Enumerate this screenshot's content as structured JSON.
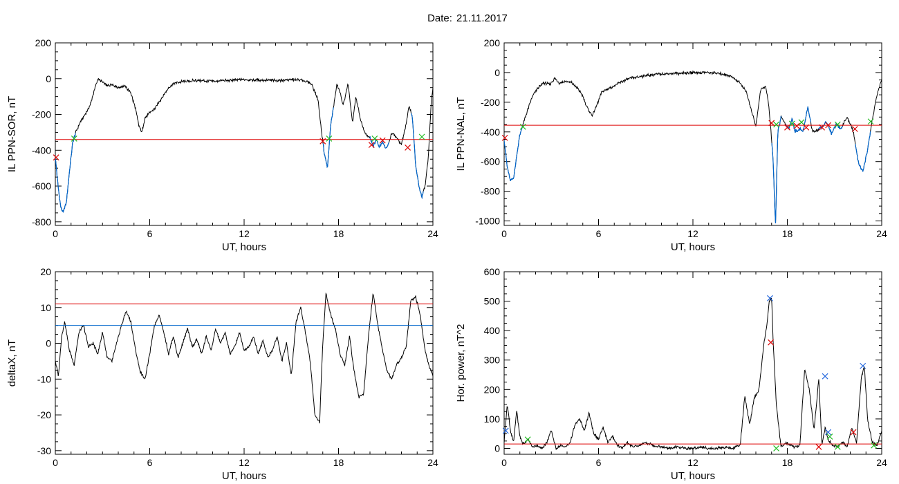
{
  "header": {
    "date_label": "Date:",
    "date_value": "21.11.2017"
  },
  "colors": {
    "signal": "#000000",
    "threshold": "#dd0000",
    "secondary_threshold": "#0066cc",
    "below_segment": "#0066cc",
    "marker_red": "#dd0000",
    "marker_green": "#22bb22",
    "marker_blue": "#2266dd"
  },
  "chart_data": [
    {
      "type": "line",
      "ylabel": "IL PPN-SOR, nT",
      "xlabel": "UT, hours",
      "xlim": [
        0,
        24
      ],
      "xticks": [
        "0",
        "6",
        "12",
        "18",
        "24"
      ],
      "ylim": [
        -820,
        200
      ],
      "yticks": [
        "200",
        "0",
        "-200",
        "-400",
        "-600",
        "-800"
      ],
      "grid": false,
      "series": [
        {
          "x": [
            0,
            0.2,
            0.35,
            0.5,
            0.7,
            0.9,
            1.1,
            1.3,
            1.6,
            1.9,
            2.2,
            2.5,
            2.7,
            3.0,
            3.3,
            3.6,
            4.0,
            4.4,
            4.8,
            5.1,
            5.3,
            5.5,
            5.7,
            6.0,
            6.3,
            6.6,
            6.9,
            7.2,
            7.5,
            7.8,
            8.2,
            9,
            10,
            11,
            12,
            13,
            14,
            15,
            15.8,
            16.3,
            16.7,
            16.9,
            17.1,
            17.3,
            17.5,
            17.7,
            17.9,
            18.1,
            18.3,
            18.6,
            18.9,
            19.1,
            19.4,
            19.7,
            20.0,
            20.2,
            20.4,
            20.6,
            20.8,
            21.0,
            21.2,
            21.4,
            21.7,
            22.0,
            22.3,
            22.5,
            22.7,
            22.9,
            23.1,
            23.3,
            23.5,
            23.7,
            23.9,
            24
          ],
          "y": [
            -440,
            -620,
            -720,
            -750,
            -690,
            -520,
            -360,
            -300,
            -240,
            -200,
            -150,
            -60,
            0,
            -20,
            -40,
            -30,
            -50,
            -40,
            -80,
            -170,
            -260,
            -300,
            -220,
            -190,
            -170,
            -130,
            -90,
            -50,
            -30,
            -20,
            -15,
            -10,
            -15,
            -10,
            -5,
            -8,
            -10,
            -5,
            -10,
            -30,
            -120,
            -280,
            -420,
            -500,
            -260,
            -150,
            -30,
            -80,
            -150,
            -30,
            -250,
            -100,
            -230,
            -310,
            -330,
            -380,
            -340,
            -380,
            -350,
            -390,
            -360,
            -300,
            -330,
            -370,
            -250,
            -150,
            -220,
            -480,
            -600,
            -660,
            -600,
            -450,
            -120,
            -50
          ]
        }
      ],
      "thresholds": [
        {
          "value": -340,
          "color": "#dd0000"
        }
      ],
      "below_segments": [
        [
          0,
          1.3
        ],
        [
          17.0,
          17.7
        ],
        [
          20.0,
          21.2
        ],
        [
          22.6,
          23.4
        ]
      ],
      "markers": [
        {
          "x": 0.05,
          "y": -440,
          "color": "red"
        },
        {
          "x": 1.2,
          "y": -335,
          "color": "green"
        },
        {
          "x": 17.0,
          "y": -350,
          "color": "red"
        },
        {
          "x": 17.4,
          "y": -335,
          "color": "green"
        },
        {
          "x": 20.1,
          "y": -370,
          "color": "red"
        },
        {
          "x": 20.3,
          "y": -335,
          "color": "green"
        },
        {
          "x": 20.8,
          "y": -345,
          "color": "red"
        },
        {
          "x": 22.4,
          "y": -385,
          "color": "red"
        },
        {
          "x": 23.3,
          "y": -325,
          "color": "green"
        }
      ]
    },
    {
      "type": "line",
      "ylabel": "IL PPN-NAL, nT",
      "xlabel": "UT, hours",
      "xlim": [
        0,
        24
      ],
      "xticks": [
        "0",
        "6",
        "12",
        "18",
        "24"
      ],
      "ylim": [
        -1030,
        200
      ],
      "yticks": [
        "200",
        "0",
        "-200",
        "-400",
        "-600",
        "-800",
        "-1000"
      ],
      "grid": false,
      "series": [
        {
          "x": [
            0,
            0.2,
            0.4,
            0.6,
            0.8,
            1.0,
            1.2,
            1.5,
            1.8,
            2.1,
            2.5,
            2.9,
            3.2,
            3.5,
            3.9,
            4.3,
            4.7,
            5.0,
            5.3,
            5.6,
            5.9,
            6.2,
            6.6,
            7.0,
            7.5,
            8,
            8.5,
            9,
            10,
            11,
            12,
            13,
            14,
            14.5,
            15,
            15.4,
            15.7,
            16.0,
            16.3,
            16.6,
            16.8,
            16.95,
            17.1,
            17.25,
            17.4,
            17.6,
            17.9,
            18.1,
            18.3,
            18.5,
            18.8,
            19.0,
            19.3,
            19.6,
            19.9,
            20.2,
            20.5,
            20.8,
            21.1,
            21.4,
            21.8,
            22.2,
            22.5,
            22.8,
            23.1,
            23.4,
            23.7,
            23.9,
            24
          ],
          "y": [
            -450,
            -640,
            -730,
            -710,
            -560,
            -420,
            -350,
            -250,
            -160,
            -110,
            -70,
            -80,
            -40,
            -70,
            -60,
            -70,
            -110,
            -160,
            -240,
            -290,
            -220,
            -130,
            -110,
            -90,
            -60,
            -40,
            -30,
            -20,
            -10,
            -5,
            0,
            0,
            -10,
            -30,
            -70,
            -130,
            -250,
            -360,
            -120,
            -90,
            -200,
            -380,
            -600,
            -1030,
            -400,
            -300,
            -350,
            -380,
            -310,
            -400,
            -380,
            -400,
            -230,
            -400,
            -390,
            -370,
            -330,
            -410,
            -350,
            -380,
            -300,
            -400,
            -600,
            -670,
            -520,
            -320,
            -150,
            -80,
            -50
          ]
        }
      ],
      "thresholds": [
        {
          "value": -355,
          "color": "#dd0000"
        }
      ],
      "below_segments": [
        [
          0,
          1.2
        ],
        [
          17.0,
          17.6
        ],
        [
          17.9,
          19.5
        ],
        [
          20.0,
          21.5
        ],
        [
          22.3,
          23.3
        ]
      ],
      "markers": [
        {
          "x": 0.05,
          "y": -440,
          "color": "red"
        },
        {
          "x": 1.2,
          "y": -365,
          "color": "green"
        },
        {
          "x": 17.0,
          "y": -340,
          "color": "red"
        },
        {
          "x": 17.3,
          "y": -350,
          "color": "green"
        },
        {
          "x": 18.0,
          "y": -370,
          "color": "red"
        },
        {
          "x": 18.3,
          "y": -345,
          "color": "green"
        },
        {
          "x": 18.6,
          "y": -360,
          "color": "red"
        },
        {
          "x": 18.9,
          "y": -335,
          "color": "green"
        },
        {
          "x": 19.2,
          "y": -370,
          "color": "red"
        },
        {
          "x": 20.2,
          "y": -370,
          "color": "red"
        },
        {
          "x": 20.6,
          "y": -355,
          "color": "red"
        },
        {
          "x": 21.2,
          "y": -350,
          "color": "green"
        },
        {
          "x": 22.3,
          "y": -380,
          "color": "red"
        },
        {
          "x": 23.3,
          "y": -330,
          "color": "green"
        }
      ]
    },
    {
      "type": "line",
      "ylabel": "deltaX, nT",
      "xlabel": "UT, hours",
      "xlim": [
        0,
        24
      ],
      "xticks": [
        "0",
        "6",
        "12",
        "18",
        "24"
      ],
      "ylim": [
        -31,
        20
      ],
      "yticks": [
        "20",
        "10",
        "0",
        "-10",
        "-20",
        "-30"
      ],
      "grid": false,
      "series": [
        {
          "x": [
            0,
            0.2,
            0.4,
            0.6,
            0.9,
            1.2,
            1.5,
            1.8,
            2.1,
            2.4,
            2.7,
            3.0,
            3.3,
            3.6,
            3.9,
            4.2,
            4.5,
            4.8,
            5.1,
            5.4,
            5.7,
            6.0,
            6.3,
            6.6,
            6.9,
            7.2,
            7.5,
            7.8,
            8.1,
            8.4,
            8.7,
            9.0,
            9.3,
            9.6,
            9.9,
            10.2,
            10.5,
            10.8,
            11.1,
            11.4,
            11.7,
            12.0,
            12.3,
            12.6,
            12.9,
            13.2,
            13.5,
            13.8,
            14.1,
            14.4,
            14.7,
            15.0,
            15.3,
            15.6,
            15.9,
            16.2,
            16.5,
            16.8,
            17.0,
            17.2,
            17.5,
            17.8,
            18.1,
            18.4,
            18.7,
            19.0,
            19.3,
            19.6,
            19.9,
            20.2,
            20.5,
            20.8,
            21.1,
            21.4,
            21.7,
            22.0,
            22.3,
            22.6,
            22.9,
            23.2,
            23.5,
            23.8,
            24
          ],
          "y": [
            -5,
            -9,
            2,
            6,
            -2,
            -6,
            3,
            5,
            -1,
            0,
            -3,
            3,
            -4,
            -5,
            0,
            5,
            9,
            6,
            -2,
            -8,
            -10,
            -3,
            5,
            8,
            3,
            -3,
            2,
            -4,
            0,
            4,
            -1,
            1,
            -3,
            2,
            -2,
            4,
            0,
            3,
            -3,
            -1,
            3,
            -2,
            -1,
            2,
            -3,
            1,
            -4,
            -2,
            2,
            -5,
            0,
            -9,
            6,
            10,
            3,
            -5,
            -20,
            -22,
            0,
            14,
            8,
            4,
            -3,
            -6,
            2,
            -8,
            -15,
            -14,
            2,
            14,
            5,
            -2,
            -8,
            -10,
            -6,
            -4,
            -1,
            12,
            13,
            8,
            -2,
            -7,
            -9
          ]
        }
      ],
      "thresholds": [
        {
          "value": 11,
          "color": "#dd0000"
        },
        {
          "value": 5,
          "color": "#0066cc"
        }
      ],
      "below_segments": [],
      "markers": []
    },
    {
      "type": "line",
      "ylabel": "Hor. power, nT^2",
      "xlabel": "UT, hours",
      "xlim": [
        0,
        24
      ],
      "xticks": [
        "0",
        "6",
        "12",
        "18",
        "24"
      ],
      "ylim": [
        -20,
        600
      ],
      "yticks": [
        "600",
        "500",
        "400",
        "300",
        "200",
        "100",
        "0"
      ],
      "grid": false,
      "series": [
        {
          "x": [
            0,
            0.2,
            0.4,
            0.6,
            0.8,
            1.0,
            1.2,
            1.5,
            1.8,
            2.1,
            2.4,
            2.7,
            3.0,
            3.3,
            3.6,
            3.9,
            4.2,
            4.5,
            4.8,
            5.1,
            5.4,
            5.7,
            6.0,
            6.3,
            6.6,
            6.9,
            7.2,
            7.5,
            7.8,
            8.2,
            8.6,
            9.0,
            9.5,
            10,
            10.5,
            11,
            11.5,
            12,
            12.5,
            13,
            13.5,
            14,
            14.5,
            15.0,
            15.3,
            15.6,
            15.9,
            16.2,
            16.5,
            16.7,
            16.85,
            17.0,
            17.1,
            17.3,
            17.6,
            17.9,
            18.2,
            18.5,
            18.8,
            19.1,
            19.4,
            19.7,
            20.0,
            20.2,
            20.4,
            20.6,
            20.9,
            21.2,
            21.5,
            21.8,
            22.1,
            22.4,
            22.7,
            22.9,
            23.1,
            23.4,
            23.7,
            24
          ],
          "y": [
            20,
            150,
            60,
            20,
            130,
            40,
            15,
            30,
            5,
            10,
            0,
            20,
            60,
            0,
            10,
            5,
            20,
            80,
            100,
            60,
            120,
            50,
            30,
            70,
            20,
            40,
            10,
            0,
            20,
            5,
            10,
            20,
            10,
            5,
            0,
            5,
            0,
            0,
            5,
            0,
            0,
            5,
            0,
            10,
            180,
            80,
            170,
            200,
            350,
            420,
            500,
            510,
            360,
            150,
            5,
            20,
            10,
            5,
            10,
            270,
            200,
            60,
            240,
            10,
            70,
            30,
            10,
            5,
            20,
            5,
            70,
            20,
            240,
            280,
            100,
            20,
            10,
            60
          ]
        }
      ],
      "thresholds": [
        {
          "value": 15,
          "color": "#dd0000"
        }
      ],
      "below_segments": [],
      "markers": [
        {
          "x": 0.1,
          "y": 60,
          "color": "blue"
        },
        {
          "x": 1.5,
          "y": 30,
          "color": "green"
        },
        {
          "x": 16.9,
          "y": 510,
          "color": "blue"
        },
        {
          "x": 16.95,
          "y": 360,
          "color": "red"
        },
        {
          "x": 17.3,
          "y": 0,
          "color": "green"
        },
        {
          "x": 20.0,
          "y": 5,
          "color": "red"
        },
        {
          "x": 20.4,
          "y": 245,
          "color": "blue"
        },
        {
          "x": 20.6,
          "y": 55,
          "color": "blue"
        },
        {
          "x": 20.7,
          "y": 40,
          "color": "green"
        },
        {
          "x": 21.2,
          "y": 5,
          "color": "green"
        },
        {
          "x": 22.2,
          "y": 55,
          "color": "red"
        },
        {
          "x": 22.8,
          "y": 280,
          "color": "blue"
        },
        {
          "x": 23.5,
          "y": 10,
          "color": "green"
        }
      ]
    }
  ]
}
